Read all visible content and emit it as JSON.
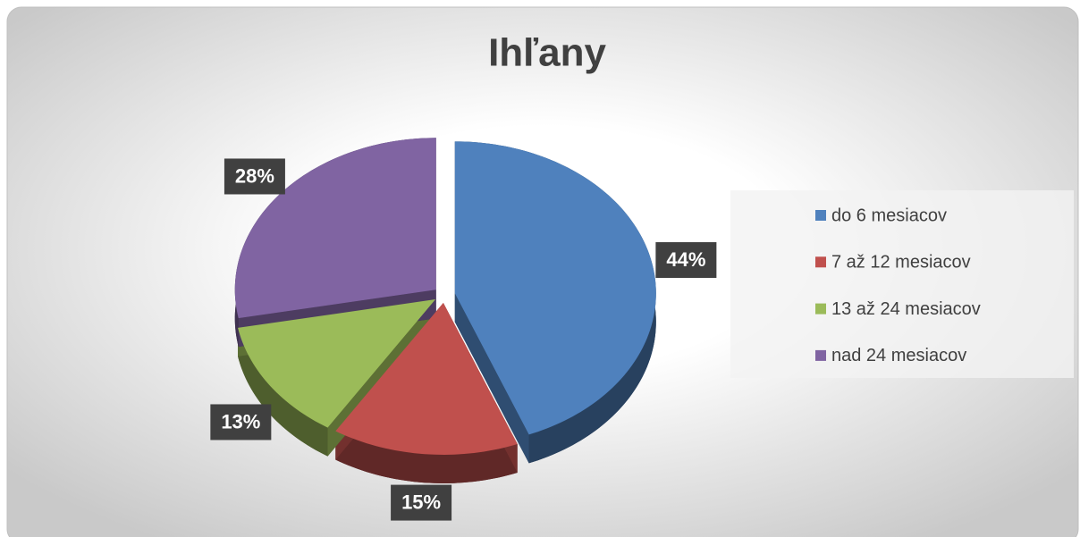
{
  "chart_data": {
    "type": "pie",
    "title": "Ihľany",
    "categories": [
      "do 6 mesiacov",
      "7 až 12 mesiacov",
      "13 až 24 mesiacov",
      "nad 24 mesiacov"
    ],
    "values": [
      44,
      15,
      13,
      28
    ],
    "value_labels": [
      "44%",
      "15%",
      "13%",
      "28%"
    ],
    "colors": [
      "#4f81bd",
      "#c0504d",
      "#9bbb59",
      "#8064a2"
    ],
    "legend": "right"
  }
}
